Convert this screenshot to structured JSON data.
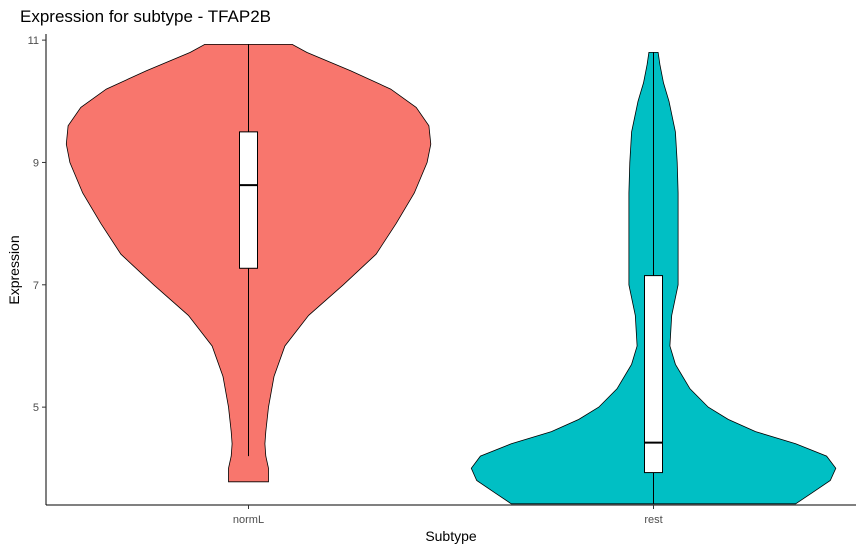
{
  "chart_data": {
    "type": "violin",
    "title": "Expression for subtype - TFAP2B",
    "xlabel": "Subtype",
    "ylabel": "Expression",
    "ylim": [
      3.4,
      11.1
    ],
    "yticks": [
      5,
      7,
      9,
      11
    ],
    "categories": [
      "normL",
      "rest"
    ],
    "grid": false,
    "legend": "none",
    "colors": [
      "#F8766D",
      "#00BFC4"
    ],
    "series": [
      {
        "category": "normL",
        "box": {
          "min": 4.2,
          "q1": 7.27,
          "median": 8.63,
          "q3": 9.5,
          "max": 10.93
        },
        "range": [
          3.78,
          10.93
        ],
        "density": [
          [
            3.78,
            0.11
          ],
          [
            4.0,
            0.11
          ],
          [
            4.2,
            0.095
          ],
          [
            4.4,
            0.09
          ],
          [
            4.6,
            0.095
          ],
          [
            5.0,
            0.11
          ],
          [
            5.5,
            0.14
          ],
          [
            6.0,
            0.2
          ],
          [
            6.5,
            0.33
          ],
          [
            7.0,
            0.52
          ],
          [
            7.5,
            0.7
          ],
          [
            8.0,
            0.81
          ],
          [
            8.5,
            0.91
          ],
          [
            9.0,
            0.98
          ],
          [
            9.3,
            1.0
          ],
          [
            9.6,
            0.99
          ],
          [
            9.9,
            0.92
          ],
          [
            10.2,
            0.78
          ],
          [
            10.5,
            0.56
          ],
          [
            10.8,
            0.32
          ],
          [
            10.93,
            0.24
          ]
        ]
      },
      {
        "category": "rest",
        "box": {
          "min": 3.42,
          "q1": 3.93,
          "median": 4.42,
          "q3": 7.15,
          "max": 10.8
        },
        "range": [
          3.42,
          10.8
        ],
        "density": [
          [
            3.42,
            0.78
          ],
          [
            3.6,
            0.87
          ],
          [
            3.8,
            0.97
          ],
          [
            4.0,
            1.0
          ],
          [
            4.2,
            0.95
          ],
          [
            4.4,
            0.78
          ],
          [
            4.6,
            0.56
          ],
          [
            4.8,
            0.41
          ],
          [
            5.0,
            0.3
          ],
          [
            5.3,
            0.2
          ],
          [
            5.7,
            0.12
          ],
          [
            6.0,
            0.09
          ],
          [
            6.5,
            0.1
          ],
          [
            7.0,
            0.135
          ],
          [
            7.5,
            0.135
          ],
          [
            8.0,
            0.135
          ],
          [
            8.5,
            0.135
          ],
          [
            9.0,
            0.13
          ],
          [
            9.5,
            0.12
          ],
          [
            10.0,
            0.085
          ],
          [
            10.3,
            0.055
          ],
          [
            10.6,
            0.035
          ],
          [
            10.8,
            0.025
          ]
        ]
      }
    ]
  }
}
